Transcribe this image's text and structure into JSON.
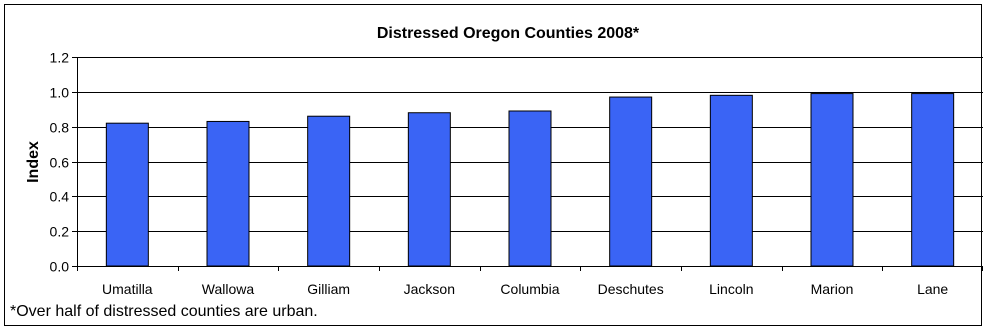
{
  "chart_data": {
    "type": "bar",
    "title": "Distressed Oregon Counties 2008*",
    "xlabel": "",
    "ylabel": "Index",
    "categories": [
      "Umatilla",
      "Wallowa",
      "Gilliam",
      "Jackson",
      "Columbia",
      "Deschutes",
      "Lincoln",
      "Marion",
      "Lane"
    ],
    "values": [
      0.82,
      0.83,
      0.86,
      0.88,
      0.89,
      0.97,
      0.98,
      0.99,
      0.99
    ],
    "ylim": [
      0,
      1.2
    ],
    "yticks": [
      "0.0",
      "0.2",
      "0.4",
      "0.6",
      "0.8",
      "1.0",
      "1.2"
    ],
    "grid": true,
    "legend": "none",
    "bar_color": "#3a64f5",
    "footnote": "*Over half of distressed counties are urban."
  }
}
